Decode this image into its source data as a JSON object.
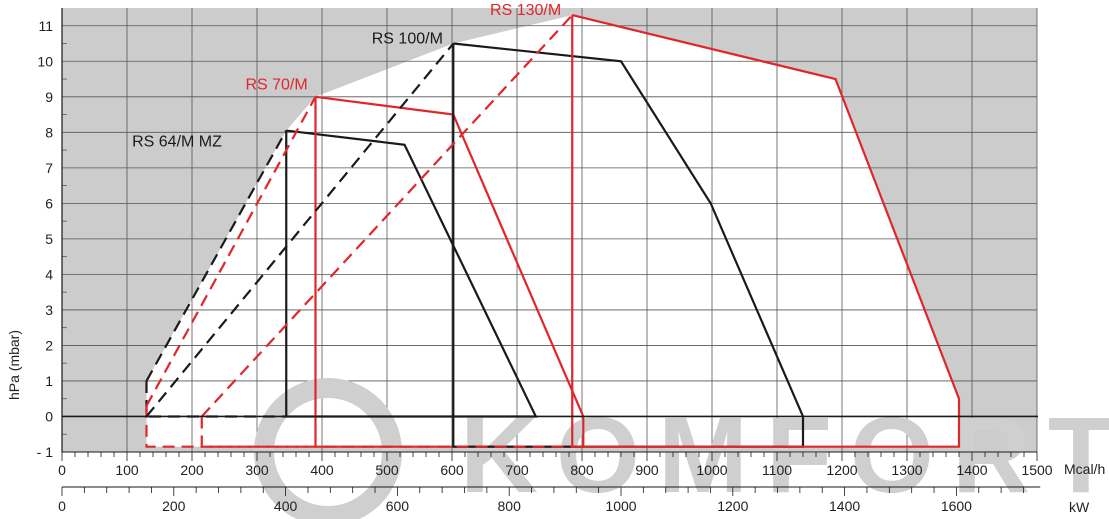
{
  "chart_data": {
    "type": "line",
    "title": "",
    "ylabel": "hPa (mbar)",
    "ylim": [
      -1,
      11.5
    ],
    "yticks": [
      -1,
      0,
      1,
      2,
      3,
      4,
      5,
      6,
      7,
      8,
      9,
      10,
      11
    ],
    "ytick_labels": [
      "- 1",
      "0",
      "1",
      "2",
      "3",
      "4",
      "5",
      "6",
      "7",
      "8",
      "9",
      "10",
      "11"
    ],
    "x_mcal": {
      "unit": "Mcal/h",
      "ticks": [
        0,
        100,
        200,
        300,
        400,
        500,
        600,
        700,
        800,
        900,
        1000,
        1100,
        1200,
        1300,
        1400,
        1500
      ],
      "tick_labels": [
        "0",
        "100",
        "200",
        "300",
        "400",
        "500",
        "600",
        "700",
        "800",
        "900",
        "1000",
        "1100",
        "1200",
        "1300",
        "1400",
        "1500"
      ]
    },
    "x_kw": {
      "unit": "kW",
      "ticks": [
        0,
        200,
        400,
        600,
        800,
        1000,
        1200,
        1400,
        1600
      ],
      "tick_labels": [
        "0",
        "200",
        "400",
        "600",
        "800",
        "1000",
        "1200",
        "1400",
        "1600"
      ]
    },
    "shaded_region": {
      "x_min_mcal": 0,
      "x_max_mcal": 1500,
      "y_min": -1,
      "y_max": 11.5,
      "color": "#cccccc"
    },
    "colors": {
      "red": "#e0262a",
      "black": "#1a1a1a",
      "grid": "#555555",
      "shade": "#cccccc",
      "plot_bg": "#ffffff"
    },
    "series": [
      {
        "name": "RS 64/M MZ",
        "color": "#1a1a1a",
        "solid": [
          [
            345,
            8.05
          ],
          [
            527,
            7.65
          ],
          [
            729,
            0
          ],
          [
            345,
            0
          ],
          [
            345,
            8.05
          ]
        ],
        "dashed": [
          [
            [
              130,
              1
            ],
            [
              345,
              8.05
            ]
          ],
          [
            [
              130,
              1
            ],
            [
              130,
              0
            ],
            [
              345,
              0
            ]
          ]
        ],
        "label_at": [
          246,
          7.6
        ]
      },
      {
        "name": "RS 70/M",
        "color": "#e0262a",
        "solid": [
          [
            390,
            9
          ],
          [
            602,
            8.5
          ],
          [
            802,
            0
          ],
          [
            802,
            -0.85
          ],
          [
            390,
            -0.85
          ],
          [
            390,
            9
          ]
        ],
        "dashed": [
          [
            [
              130,
              0.3
            ],
            [
              390,
              9
            ]
          ],
          [
            [
              130,
              0.3
            ],
            [
              130,
              -0.85
            ],
            [
              390,
              -0.85
            ]
          ]
        ],
        "label_at": [
          378,
          9.2
        ]
      },
      {
        "name": "RS 100/M",
        "color": "#1a1a1a",
        "solid": [
          [
            602,
            10.5
          ],
          [
            860,
            10
          ],
          [
            998,
            6
          ],
          [
            1140,
            0
          ],
          [
            1140,
            -0.85
          ],
          [
            602,
            -0.85
          ],
          [
            602,
            10.5
          ]
        ],
        "dashed": [
          [
            [
              130,
              0
            ],
            [
              602,
              10.5
            ]
          ]
        ],
        "label_at": [
          586,
          10.5
        ]
      },
      {
        "name": "RS 130/M",
        "color": "#e0262a",
        "solid": [
          [
            785,
            11.3
          ],
          [
            1190,
            9.5
          ],
          [
            1380,
            0.5
          ],
          [
            1380,
            -0.85
          ],
          [
            785,
            -0.85
          ],
          [
            785,
            11.3
          ]
        ],
        "dashed": [
          [
            [
              215,
              0
            ],
            [
              785,
              11.3
            ]
          ],
          [
            [
              215,
              0
            ],
            [
              215,
              -0.85
            ],
            [
              785,
              -0.85
            ]
          ]
        ],
        "label_at": [
          768,
          11.3
        ]
      }
    ],
    "watermark": "KOMFORT"
  }
}
